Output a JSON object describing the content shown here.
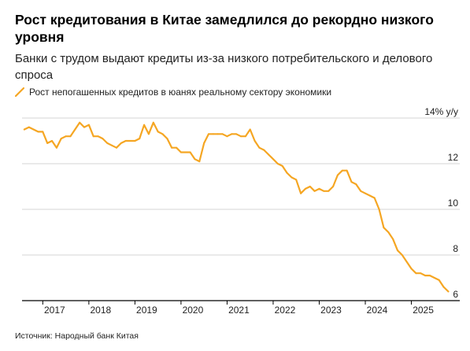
{
  "title": "Рост кредитования в Китае замедлился до рекордно низкого уровня",
  "subtitle": "Банки с трудом выдают кредиты из-за низкого потребительского и делового спроса",
  "source": "Источник: Народный банк Китая",
  "colors": {
    "line": "#F5A623",
    "grid": "#d4d4d4",
    "axis": "#000000"
  },
  "chart_data": {
    "type": "line",
    "title": "Рост кредитования в Китае замедлился до рекордно низкого уровня",
    "subtitle": "Банки с трудом выдают кредиты из-за низкого потребительского и делового спроса",
    "ylabel": "",
    "y_unit_label": "14% y/y",
    "ylim": [
      6,
      14
    ],
    "y_ticks": [
      {
        "value": 14,
        "label": "14% y/y"
      },
      {
        "value": 12,
        "label": "12"
      },
      {
        "value": 10,
        "label": "10"
      },
      {
        "value": 8,
        "label": "8"
      },
      {
        "value": 6,
        "label": "6"
      }
    ],
    "x_ticks": [
      2017,
      2018,
      2019,
      2020,
      2021,
      2022,
      2023,
      2024,
      2025
    ],
    "xlim": [
      2016.55,
      2026.05
    ],
    "grid": "horizontal",
    "legend": "top-left",
    "series": [
      {
        "name": "Рост непогашенных кредитов в юанях реальному сектору экономики",
        "color": "#F5A623",
        "x": [
          2016.6,
          2016.7,
          2016.8,
          2016.9,
          2017.0,
          2017.1,
          2017.2,
          2017.3,
          2017.4,
          2017.5,
          2017.6,
          2017.7,
          2017.8,
          2017.9,
          2018.0,
          2018.1,
          2018.2,
          2018.3,
          2018.4,
          2018.5,
          2018.6,
          2018.7,
          2018.8,
          2018.9,
          2019.0,
          2019.1,
          2019.2,
          2019.3,
          2019.4,
          2019.5,
          2019.6,
          2019.7,
          2019.8,
          2019.9,
          2020.0,
          2020.1,
          2020.2,
          2020.3,
          2020.4,
          2020.5,
          2020.6,
          2020.7,
          2020.8,
          2020.9,
          2021.0,
          2021.1,
          2021.2,
          2021.3,
          2021.4,
          2021.5,
          2021.6,
          2021.7,
          2021.8,
          2021.9,
          2022.0,
          2022.1,
          2022.2,
          2022.3,
          2022.4,
          2022.5,
          2022.6,
          2022.7,
          2022.8,
          2022.9,
          2023.0,
          2023.1,
          2023.2,
          2023.3,
          2023.4,
          2023.5,
          2023.6,
          2023.7,
          2023.8,
          2023.9,
          2024.0,
          2024.1,
          2024.2,
          2024.3,
          2024.4,
          2024.5,
          2024.6,
          2024.7,
          2024.8,
          2024.9,
          2025.0,
          2025.1,
          2025.2,
          2025.3,
          2025.4,
          2025.5,
          2025.6,
          2025.7,
          2025.8
        ],
        "values": [
          13.5,
          13.6,
          13.5,
          13.4,
          13.4,
          12.9,
          13.0,
          12.7,
          13.1,
          13.2,
          13.2,
          13.5,
          13.8,
          13.6,
          13.7,
          13.2,
          13.2,
          13.1,
          12.9,
          12.8,
          12.7,
          12.9,
          13.0,
          13.0,
          13.0,
          13.1,
          13.7,
          13.3,
          13.8,
          13.4,
          13.3,
          13.1,
          12.7,
          12.7,
          12.5,
          12.5,
          12.5,
          12.2,
          12.1,
          12.9,
          13.3,
          13.3,
          13.3,
          13.3,
          13.2,
          13.3,
          13.3,
          13.2,
          13.2,
          13.5,
          13.0,
          12.7,
          12.6,
          12.4,
          12.2,
          12.0,
          11.9,
          11.6,
          11.4,
          11.3,
          10.7,
          10.9,
          11.0,
          10.8,
          10.9,
          10.8,
          10.8,
          11.0,
          11.5,
          11.7,
          11.7,
          11.2,
          11.1,
          10.8,
          10.7,
          10.6,
          10.5,
          10.0,
          9.2,
          9.0,
          8.7,
          8.2,
          8.0,
          7.7,
          7.4,
          7.2,
          7.2,
          7.1,
          7.1,
          7.0,
          6.9,
          6.6,
          6.4
        ]
      }
    ]
  }
}
